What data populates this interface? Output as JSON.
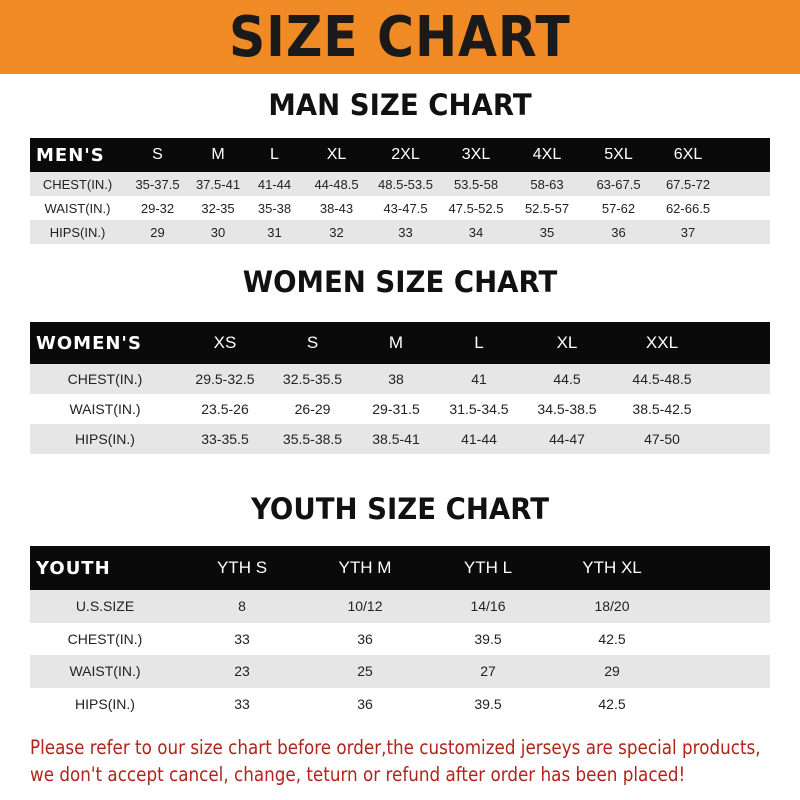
{
  "title": "SIZE CHART",
  "colors": {
    "banner": "#f08a24",
    "header_row": "#0a0a0a",
    "shaded_row": "#e6e6e6",
    "note": "#b0241c"
  },
  "men": {
    "heading": "MAN SIZE CHART",
    "header": [
      "MEN'S",
      "S",
      "M",
      "L",
      "XL",
      "2XL",
      "3XL",
      "4XL",
      "5XL",
      "6XL"
    ],
    "rows": [
      [
        "CHEST(IN.)",
        "35-37.5",
        "37.5-41",
        "41-44",
        "44-48.5",
        "48.5-53.5",
        "53.5-58",
        "58-63",
        "63-67.5",
        "67.5-72"
      ],
      [
        "WAIST(IN.)",
        "29-32",
        "32-35",
        "35-38",
        "38-43",
        "43-47.5",
        "47.5-52.5",
        "52.5-57",
        "57-62",
        "62-66.5"
      ],
      [
        "HIPS(IN.)",
        "29",
        "30",
        "31",
        "32",
        "33",
        "34",
        "35",
        "36",
        "37"
      ]
    ]
  },
  "women": {
    "heading": "WOMEN SIZE CHART",
    "header": [
      "WOMEN'S",
      "XS",
      "S",
      "M",
      "L",
      "XL",
      "XXL"
    ],
    "rows": [
      [
        "CHEST(IN.)",
        "29.5-32.5",
        "32.5-35.5",
        "38",
        "41",
        "44.5",
        "44.5-48.5"
      ],
      [
        "WAIST(IN.)",
        "23.5-26",
        "26-29",
        "29-31.5",
        "31.5-34.5",
        "34.5-38.5",
        "38.5-42.5"
      ],
      [
        "HIPS(IN.)",
        "33-35.5",
        "35.5-38.5",
        "38.5-41",
        "41-44",
        "44-47",
        "47-50"
      ]
    ]
  },
  "youth": {
    "heading": "YOUTH SIZE CHART",
    "header": [
      "YOUTH",
      "YTH S",
      "YTH M",
      "YTH L",
      "YTH XL"
    ],
    "rows": [
      [
        "U.S.SIZE",
        "8",
        "10/12",
        "14/16",
        "18/20"
      ],
      [
        "CHEST(IN.)",
        "33",
        "36",
        "39.5",
        "42.5"
      ],
      [
        "WAIST(IN.)",
        "23",
        "25",
        "27",
        "29"
      ],
      [
        "HIPS(IN.)",
        "33",
        "36",
        "39.5",
        "42.5"
      ]
    ]
  },
  "note": [
    "Please refer to our size chart before order,the customized jerseys are special products,",
    "we don't accept cancel, change, teturn or refund after order has been placed!"
  ]
}
